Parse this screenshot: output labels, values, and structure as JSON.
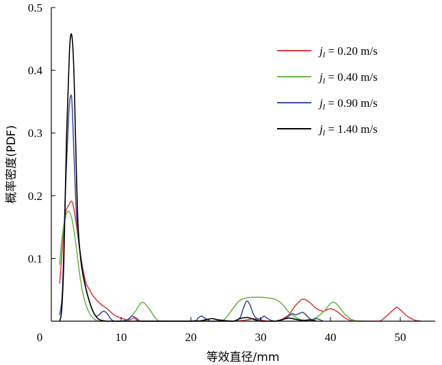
{
  "chart_data": {
    "type": "line",
    "xlabel": "等效直径/mm",
    "ylabel": "概率密度(PDF)",
    "xlim": [
      0,
      55
    ],
    "ylim": [
      0,
      0.5
    ],
    "xticks": [
      0,
      10,
      20,
      30,
      40,
      50
    ],
    "yticks": [
      0.1,
      0.2,
      0.3,
      0.4,
      0.5
    ],
    "ytick_labels": [
      "0.1",
      "0.2",
      "0.3",
      "0.4",
      "0.5"
    ],
    "xtick_labels": [
      "0",
      "10",
      "20",
      "30",
      "40",
      "50"
    ],
    "origin_label": "0",
    "legend_placement": "top-right",
    "series": [
      {
        "legend_var": "j",
        "legend_sub": "l",
        "legend_rest": " = 0.20 m/s",
        "color": "#e03c3c",
        "x": [
          1.2,
          1.6,
          2.0,
          2.5,
          3.0,
          3.5,
          4.0,
          4.5,
          5.0,
          5.5,
          6.0,
          7.0,
          8.0,
          9.0,
          10.0,
          11.0,
          12.0,
          13.0,
          20.0,
          26.0,
          28.0,
          29.0,
          30.0,
          31.0,
          32.0,
          33.0,
          34.0,
          35.0,
          36.0,
          37.0,
          38.0,
          39.0,
          40.0,
          41.0,
          42.0,
          43.0,
          45.0,
          47.0,
          48.0,
          49.0,
          49.5,
          50.0,
          51.0,
          52.0,
          53.0
        ],
        "y": [
          0.06,
          0.12,
          0.17,
          0.185,
          0.19,
          0.16,
          0.12,
          0.085,
          0.06,
          0.05,
          0.04,
          0.028,
          0.02,
          0.01,
          0.005,
          0.002,
          0.005,
          0.0,
          0.0,
          0.0,
          0.002,
          0.004,
          0.002,
          0.0,
          0.0,
          0.003,
          0.01,
          0.025,
          0.035,
          0.03,
          0.02,
          0.016,
          0.02,
          0.015,
          0.006,
          0.001,
          0.0,
          0.0,
          0.008,
          0.018,
          0.022,
          0.018,
          0.008,
          0.002,
          0.0
        ]
      },
      {
        "legend_var": "j",
        "legend_sub": "l",
        "legend_rest": " = 0.40 m/s",
        "color": "#6ab84a",
        "x": [
          1.2,
          1.5,
          2.0,
          2.5,
          3.0,
          3.5,
          4.0,
          4.5,
          5.0,
          5.5,
          6.0,
          6.5,
          7.0,
          8.0,
          9.0,
          10.0,
          11.0,
          12.0,
          13.0,
          14.0,
          15.0,
          16.0,
          20.0,
          24.0,
          25.0,
          26.0,
          27.0,
          28.0,
          29.0,
          30.0,
          31.0,
          32.0,
          33.0,
          34.0,
          35.0,
          36.0,
          37.0,
          38.0,
          39.0,
          40.0,
          40.5,
          41.0,
          42.0,
          43.0,
          44.0
        ],
        "y": [
          0.09,
          0.13,
          0.165,
          0.175,
          0.16,
          0.125,
          0.08,
          0.045,
          0.025,
          0.012,
          0.005,
          0.001,
          0.0,
          0.0,
          0.0,
          0.0,
          0.003,
          0.015,
          0.03,
          0.02,
          0.004,
          0.0,
          0.0,
          0.0,
          0.005,
          0.02,
          0.033,
          0.037,
          0.038,
          0.038,
          0.037,
          0.035,
          0.028,
          0.015,
          0.006,
          0.002,
          0.002,
          0.006,
          0.015,
          0.028,
          0.03,
          0.026,
          0.012,
          0.003,
          0.0
        ]
      },
      {
        "legend_var": "j",
        "legend_sub": "l",
        "legend_rest": " = 0.90 m/s",
        "color": "#3d4d9e",
        "x": [
          1.2,
          1.6,
          2.0,
          2.5,
          2.8,
          3.0,
          3.3,
          3.6,
          4.0,
          4.5,
          5.0,
          5.5,
          6.0,
          6.5,
          7.0,
          7.5,
          8.0,
          8.5,
          9.0,
          10.0,
          11.0,
          11.5,
          12.0,
          12.5,
          13.0,
          20.0,
          21.0,
          21.5,
          22.0,
          22.5,
          23.0,
          26.0,
          27.0,
          27.5,
          28.0,
          28.5,
          29.0,
          29.5,
          30.0,
          30.5,
          31.0,
          32.0,
          33.0,
          34.0,
          34.5,
          35.0,
          35.5,
          36.0,
          36.5,
          37.0,
          37.5,
          38.0,
          39.0
        ],
        "y": [
          0.01,
          0.05,
          0.2,
          0.33,
          0.36,
          0.34,
          0.25,
          0.17,
          0.12,
          0.08,
          0.05,
          0.03,
          0.015,
          0.008,
          0.012,
          0.016,
          0.012,
          0.004,
          0.0,
          0.0,
          0.003,
          0.008,
          0.006,
          0.002,
          0.0,
          0.0,
          0.005,
          0.008,
          0.005,
          0.002,
          0.0,
          0.0,
          0.005,
          0.02,
          0.032,
          0.025,
          0.01,
          0.004,
          0.004,
          0.008,
          0.004,
          0.0,
          0.002,
          0.008,
          0.012,
          0.01,
          0.012,
          0.014,
          0.01,
          0.004,
          0.002,
          0.004,
          0.0
        ]
      },
      {
        "legend_var": "j",
        "legend_sub": "l",
        "legend_rest": " = 1.40 m/s",
        "color": "#000000",
        "x": [
          1.2,
          1.5,
          1.8,
          2.2,
          2.6,
          2.9,
          3.2,
          3.5,
          3.8,
          4.2,
          4.6,
          5.0,
          5.5,
          6.0,
          6.5,
          7.0,
          8.0,
          9.0,
          20.0,
          22.0,
          23.0,
          24.0,
          26.0,
          27.0,
          28.0,
          29.0,
          30.0,
          32.0,
          33.0,
          34.0,
          35.0,
          36.0,
          37.0,
          38.0
        ],
        "y": [
          0.0,
          0.02,
          0.1,
          0.3,
          0.43,
          0.457,
          0.41,
          0.28,
          0.16,
          0.1,
          0.07,
          0.05,
          0.03,
          0.015,
          0.006,
          0.002,
          0.0,
          0.0,
          0.0,
          0.002,
          0.004,
          0.002,
          0.0,
          0.004,
          0.006,
          0.003,
          0.0,
          0.0,
          0.002,
          0.005,
          0.003,
          0.001,
          0.002,
          0.0
        ]
      }
    ]
  }
}
